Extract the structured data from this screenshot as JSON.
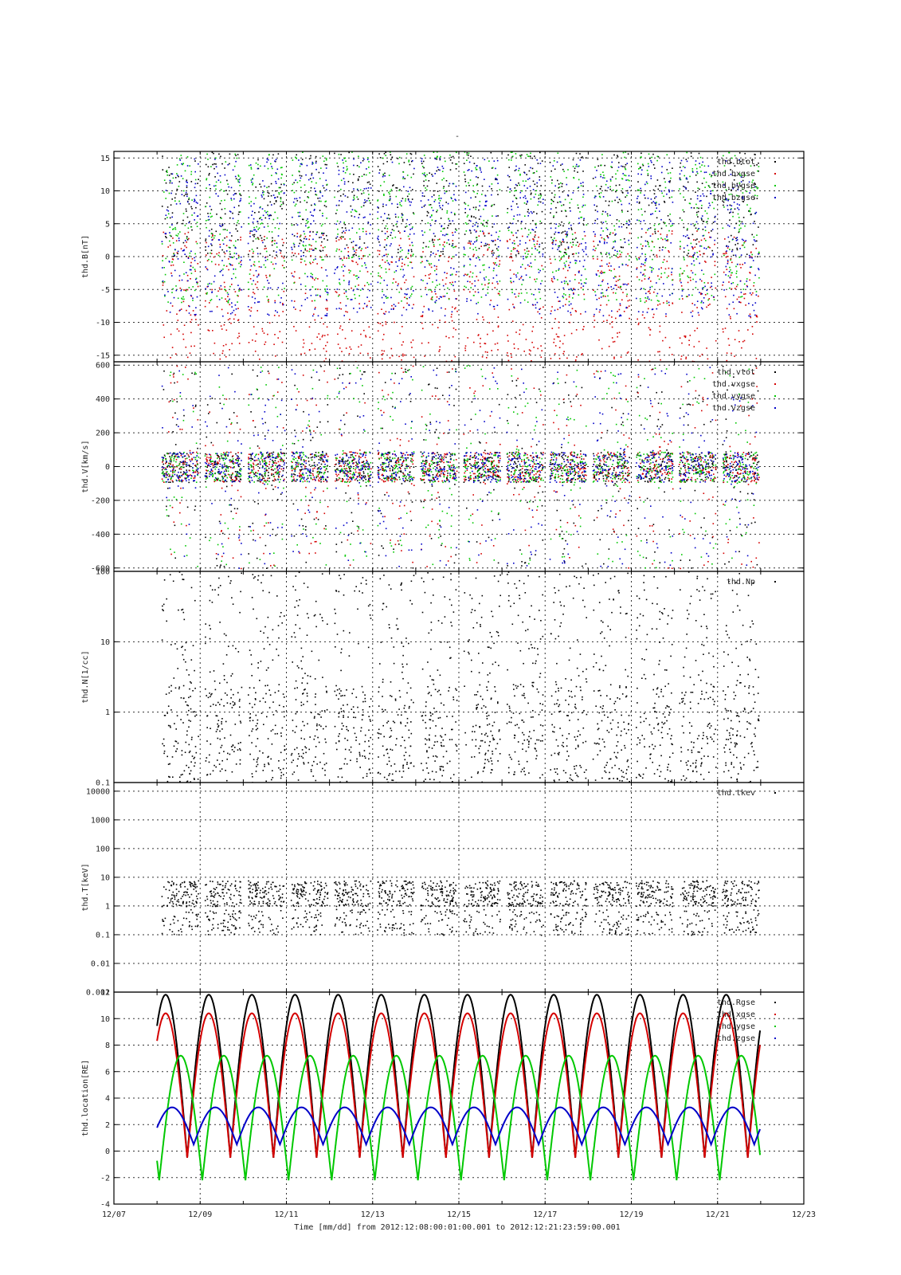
{
  "figure": {
    "title": "-",
    "xlabel": "Time [mm/dd]  from 2012:12:08:00:01:00.001  to  2012:12:21:23:59:00.001",
    "x_ticks": [
      "12/07",
      "12/09",
      "12/11",
      "12/13",
      "12/15",
      "12/17",
      "12/19",
      "12/21",
      "12/23"
    ]
  },
  "colors": {
    "black": "#000000",
    "red": "#d40000",
    "green": "#00c800",
    "blue": "#0000c8"
  },
  "chart_data": [
    {
      "id": "B",
      "type": "scatter",
      "ylabel": "thd.B[nT]",
      "scale": "linear",
      "ylim": [
        -16,
        16
      ],
      "y_ticks": [
        "15",
        "10",
        "5",
        "0",
        "-5",
        "-10",
        "-15"
      ],
      "y_tick_values": [
        15,
        10,
        5,
        0,
        -5,
        -10,
        -15
      ],
      "legend_position": "top-right",
      "series": [
        {
          "name": "thd.btot",
          "color": "black"
        },
        {
          "name": "thd.bxgse",
          "color": "red"
        },
        {
          "name": "thd.bygse",
          "color": "green"
        },
        {
          "name": "thd.bzgse",
          "color": "blue"
        }
      ]
    },
    {
      "id": "V",
      "type": "scatter",
      "ylabel": "thd.V[km/s]",
      "scale": "linear",
      "ylim": [
        -620,
        620
      ],
      "y_ticks": [
        "600",
        "400",
        "200",
        "0",
        "-200",
        "-400",
        "-600"
      ],
      "y_tick_values": [
        600,
        400,
        200,
        0,
        -200,
        -400,
        -600
      ],
      "legend_position": "top-right",
      "series": [
        {
          "name": "thd.vtot",
          "color": "black"
        },
        {
          "name": "thd.vxgse",
          "color": "red"
        },
        {
          "name": "thd.vygse",
          "color": "green"
        },
        {
          "name": "thd.vzgse",
          "color": "blue"
        }
      ]
    },
    {
      "id": "N",
      "type": "scatter",
      "ylabel": "thd.N[1/cc]",
      "scale": "log",
      "ylim": [
        0.1,
        100
      ],
      "y_ticks": [
        "100",
        "10",
        "1",
        "0.1"
      ],
      "y_tick_values": [
        100,
        10,
        1,
        0.1
      ],
      "legend_position": "top-right",
      "series": [
        {
          "name": "thd.Np",
          "color": "black"
        }
      ]
    },
    {
      "id": "T",
      "type": "scatter",
      "ylabel": "thd.T[keV]",
      "scale": "log",
      "ylim": [
        0.001,
        20000
      ],
      "y_ticks": [
        "10000",
        "1000",
        "100",
        "10",
        "1",
        "0.1",
        "0.01",
        "0.001"
      ],
      "y_tick_values": [
        10000,
        1000,
        100,
        10,
        1,
        0.1,
        0.01,
        0.001
      ],
      "legend_position": "top-right",
      "series": [
        {
          "name": "thd.tkev",
          "color": "black"
        }
      ]
    },
    {
      "id": "location",
      "type": "line",
      "ylabel": "thd.location[RE]",
      "scale": "linear",
      "ylim": [
        -4,
        12
      ],
      "y_ticks": [
        "12",
        "10",
        "8",
        "6",
        "4",
        "2",
        "0",
        "-2",
        "-4"
      ],
      "y_tick_values": [
        12,
        10,
        8,
        6,
        4,
        2,
        0,
        -2,
        -4
      ],
      "legend_position": "top-right",
      "x_range_days": [
        8.0,
        21.99
      ],
      "orbit_period_days": 1.0,
      "series": [
        {
          "name": "thd.Rgse",
          "color": "black",
          "max": 11.8,
          "min": -0.5
        },
        {
          "name": "thd.xgse",
          "color": "red",
          "max": 10.4,
          "min": -0.5
        },
        {
          "name": "thd.ygse",
          "color": "green",
          "max": 7.2,
          "min": -2.2
        },
        {
          "name": "thd.zgse",
          "color": "blue",
          "max": 3.3,
          "min": 0.5
        }
      ]
    }
  ]
}
